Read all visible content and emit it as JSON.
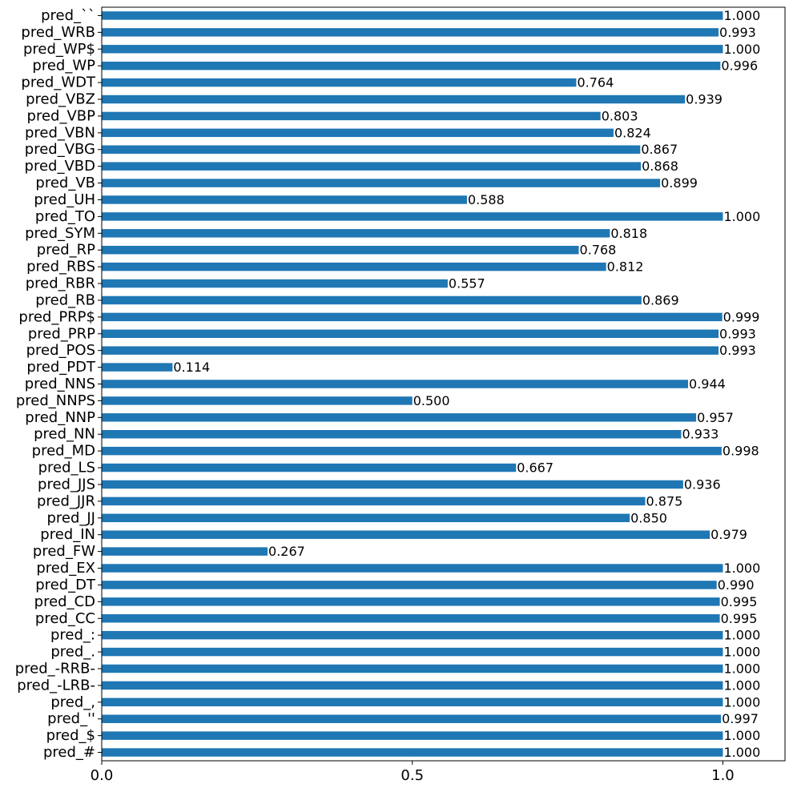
{
  "chart_data": {
    "type": "bar",
    "orientation": "horizontal",
    "color": "#1f77b4",
    "categories": [
      "pred_``",
      "pred_WRB",
      "pred_WP$",
      "pred_WP",
      "pred_WDT",
      "pred_VBZ",
      "pred_VBP",
      "pred_VBN",
      "pred_VBG",
      "pred_VBD",
      "pred_VB",
      "pred_UH",
      "pred_TO",
      "pred_SYM",
      "pred_RP",
      "pred_RBS",
      "pred_RBR",
      "pred_RB",
      "pred_PRP$",
      "pred_PRP",
      "pred_POS",
      "pred_PDT",
      "pred_NNS",
      "pred_NNPS",
      "pred_NNP",
      "pred_NN",
      "pred_MD",
      "pred_LS",
      "pred_JJS",
      "pred_JJR",
      "pred_JJ",
      "pred_IN",
      "pred_FW",
      "pred_EX",
      "pred_DT",
      "pred_CD",
      "pred_CC",
      "pred_:",
      "pred_.",
      "pred_-RRB-",
      "pred_-LRB-",
      "pred_,",
      "pred_''",
      "pred_$",
      "pred_#"
    ],
    "values": [
      1.0,
      0.993,
      1.0,
      0.996,
      0.764,
      0.939,
      0.803,
      0.824,
      0.867,
      0.868,
      0.899,
      0.588,
      1.0,
      0.818,
      0.768,
      0.812,
      0.557,
      0.869,
      0.999,
      0.993,
      0.993,
      0.114,
      0.944,
      0.5,
      0.957,
      0.933,
      0.998,
      0.667,
      0.936,
      0.875,
      0.85,
      0.979,
      0.267,
      1.0,
      0.99,
      0.995,
      0.995,
      1.0,
      1.0,
      1.0,
      1.0,
      1.0,
      0.997,
      1.0,
      1.0
    ],
    "value_labels": [
      "1.000",
      "0.993",
      "1.000",
      "0.996",
      "0.764",
      "0.939",
      "0.803",
      "0.824",
      "0.867",
      "0.868",
      "0.899",
      "0.588",
      "1.000",
      "0.818",
      "0.768",
      "0.812",
      "0.557",
      "0.869",
      "0.999",
      "0.993",
      "0.993",
      "0.114",
      "0.944",
      "0.500",
      "0.957",
      "0.933",
      "0.998",
      "0.667",
      "0.936",
      "0.875",
      "0.850",
      "0.979",
      "0.267",
      "1.000",
      "0.990",
      "0.995",
      "0.995",
      "1.000",
      "1.000",
      "1.000",
      "1.000",
      "1.000",
      "0.997",
      "1.000",
      "1.000"
    ],
    "xlim": [
      0,
      1.1
    ],
    "xticks": [
      0.0,
      0.5,
      1.0
    ],
    "xtick_labels": [
      "0.0",
      "0.5",
      "1.0"
    ],
    "title": "",
    "xlabel": "",
    "ylabel": "",
    "grid": false,
    "legend": false
  }
}
